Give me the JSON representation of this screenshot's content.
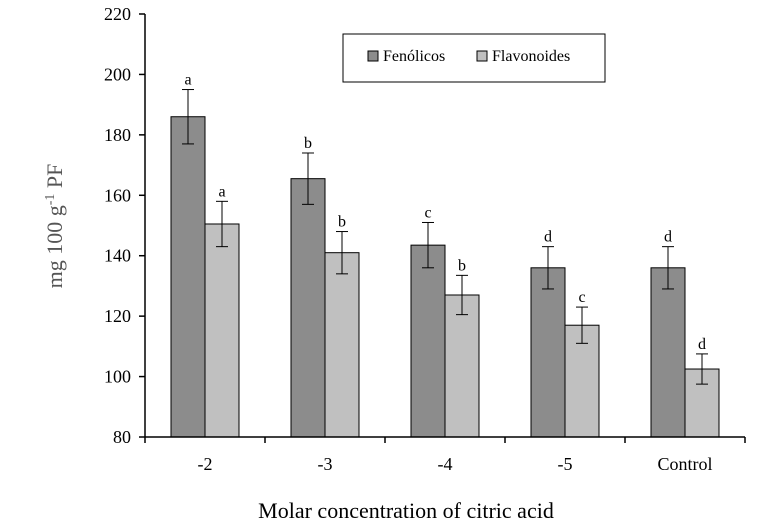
{
  "chart_data": {
    "type": "bar",
    "title": "",
    "xlabel": "Molar concentration of citric acid",
    "ylabel": {
      "base": "mg 100 g",
      "superscript": "-1",
      "suffix": " PF"
    },
    "ylim": [
      80,
      220
    ],
    "yticks": [
      80,
      100,
      120,
      140,
      160,
      180,
      200,
      220
    ],
    "categories": [
      "-2",
      "-3",
      "-4",
      "-5",
      "Control"
    ],
    "legend_position": "top-center",
    "grid": false,
    "series": [
      {
        "name": "Fenólicos",
        "color": "#8c8c8c",
        "values": [
          186,
          165.5,
          143.5,
          136,
          136
        ],
        "errors": [
          9,
          8.5,
          7.5,
          7,
          7
        ],
        "labels": [
          "a",
          "b",
          "c",
          "d",
          "d"
        ]
      },
      {
        "name": "Flavonoides",
        "color": "#c0c0c0",
        "values": [
          150.5,
          141,
          127,
          117,
          102.5
        ],
        "errors": [
          7.5,
          7,
          6.5,
          6,
          5
        ],
        "labels": [
          "a",
          "b",
          "b",
          "c",
          "d"
        ]
      }
    ]
  }
}
